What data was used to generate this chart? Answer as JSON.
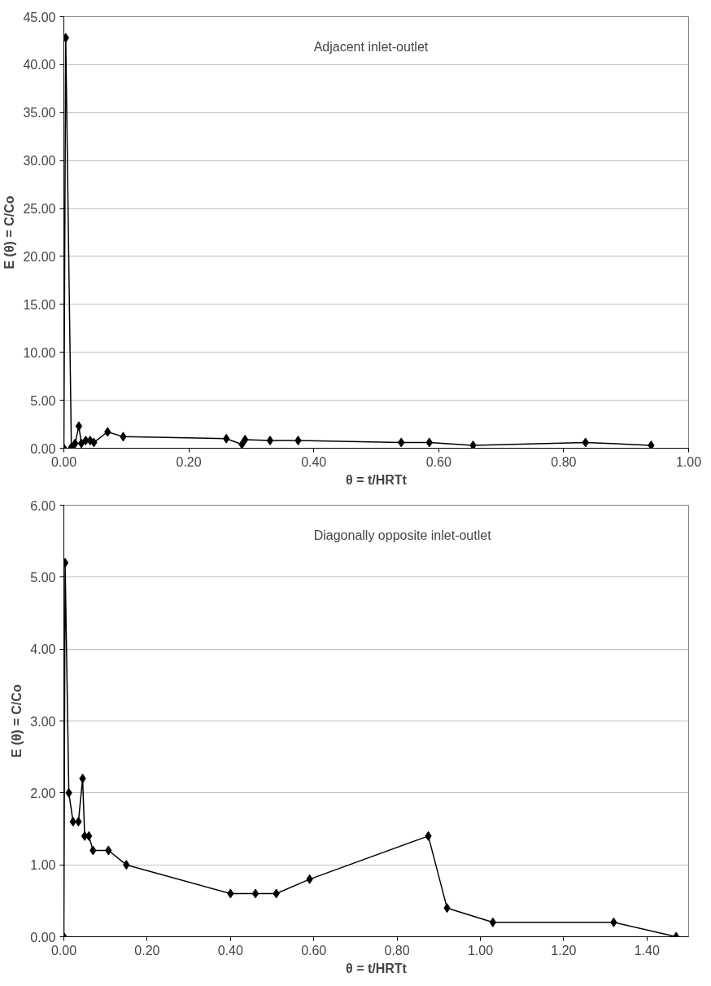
{
  "chart_data": [
    {
      "type": "line",
      "xlabel": "θ = t/HRTt",
      "ylabel": "E (θ) = C/Co",
      "annotations": [
        "Adjacent inlet-outlet"
      ],
      "marker": "diamond",
      "line_style": "solid",
      "grid": "y",
      "xlim": [
        0,
        1
      ],
      "xticks": [
        {
          "value": 0,
          "label": "0.00"
        },
        {
          "value": 0.2,
          "label": "0.20"
        },
        {
          "value": 0.4,
          "label": "0.40"
        },
        {
          "value": 0.6,
          "label": "0.60"
        },
        {
          "value": 0.8,
          "label": "0.80"
        },
        {
          "value": 1,
          "label": "1.00"
        }
      ],
      "ylim": [
        0,
        45
      ],
      "yticks": [
        {
          "value": 0,
          "label": "0.00"
        },
        {
          "value": 5,
          "label": "5.00"
        },
        {
          "value": 10,
          "label": "10.00"
        },
        {
          "value": 15,
          "label": "15.00"
        },
        {
          "value": 20,
          "label": "20.00"
        },
        {
          "value": 25,
          "label": "25.00"
        },
        {
          "value": 30,
          "label": "30.00"
        },
        {
          "value": 35,
          "label": "35.00"
        },
        {
          "value": 40,
          "label": "40.00"
        },
        {
          "value": 45,
          "label": "45.00"
        }
      ],
      "series": [
        {
          "color": "#000000",
          "x": [
            0.0,
            0.003,
            0.012,
            0.018,
            0.024,
            0.028,
            0.035,
            0.042,
            0.048,
            0.07,
            0.095,
            0.26,
            0.285,
            0.29,
            0.33,
            0.375,
            0.54,
            0.585,
            0.655,
            0.835,
            0.94
          ],
          "values": [
            0.0,
            42.8,
            0.1,
            0.5,
            2.3,
            0.5,
            0.8,
            0.8,
            0.6,
            1.7,
            1.2,
            1.0,
            0.4,
            0.9,
            0.8,
            0.8,
            0.6,
            0.6,
            0.3,
            0.6,
            0.3
          ]
        }
      ]
    },
    {
      "type": "line",
      "xlabel": "θ = t/HRTt",
      "ylabel": "E (θ) = C/Co",
      "annotations": [
        "Diagonally opposite inlet-outlet"
      ],
      "marker": "diamond",
      "line_style": "solid",
      "grid": "y",
      "xlim": [
        0,
        1.5
      ],
      "xticks": [
        {
          "value": 0,
          "label": "0.00"
        },
        {
          "value": 0.2,
          "label": "0.20"
        },
        {
          "value": 0.4,
          "label": "0.40"
        },
        {
          "value": 0.6,
          "label": "0.60"
        },
        {
          "value": 0.8,
          "label": "0.80"
        },
        {
          "value": 1.0,
          "label": "1.00"
        },
        {
          "value": 1.2,
          "label": "1.20"
        },
        {
          "value": 1.4,
          "label": "1.40"
        }
      ],
      "ylim": [
        0,
        6
      ],
      "yticks": [
        {
          "value": 0,
          "label": "0.00"
        },
        {
          "value": 1,
          "label": "1.00"
        },
        {
          "value": 2,
          "label": "2.00"
        },
        {
          "value": 3,
          "label": "3.00"
        },
        {
          "value": 4,
          "label": "4.00"
        },
        {
          "value": 5,
          "label": "5.00"
        },
        {
          "value": 6,
          "label": "6.00"
        }
      ],
      "series": [
        {
          "color": "#000000",
          "x": [
            0.0,
            0.003,
            0.012,
            0.022,
            0.035,
            0.045,
            0.05,
            0.06,
            0.07,
            0.107,
            0.15,
            0.4,
            0.46,
            0.51,
            0.59,
            0.875,
            0.92,
            1.03,
            1.32,
            1.47
          ],
          "values": [
            0.0,
            5.2,
            2.0,
            1.6,
            1.6,
            2.2,
            1.4,
            1.4,
            1.2,
            1.2,
            1.0,
            0.6,
            0.6,
            0.6,
            0.8,
            1.4,
            0.4,
            0.2,
            0.2,
            0.0
          ]
        }
      ]
    }
  ]
}
